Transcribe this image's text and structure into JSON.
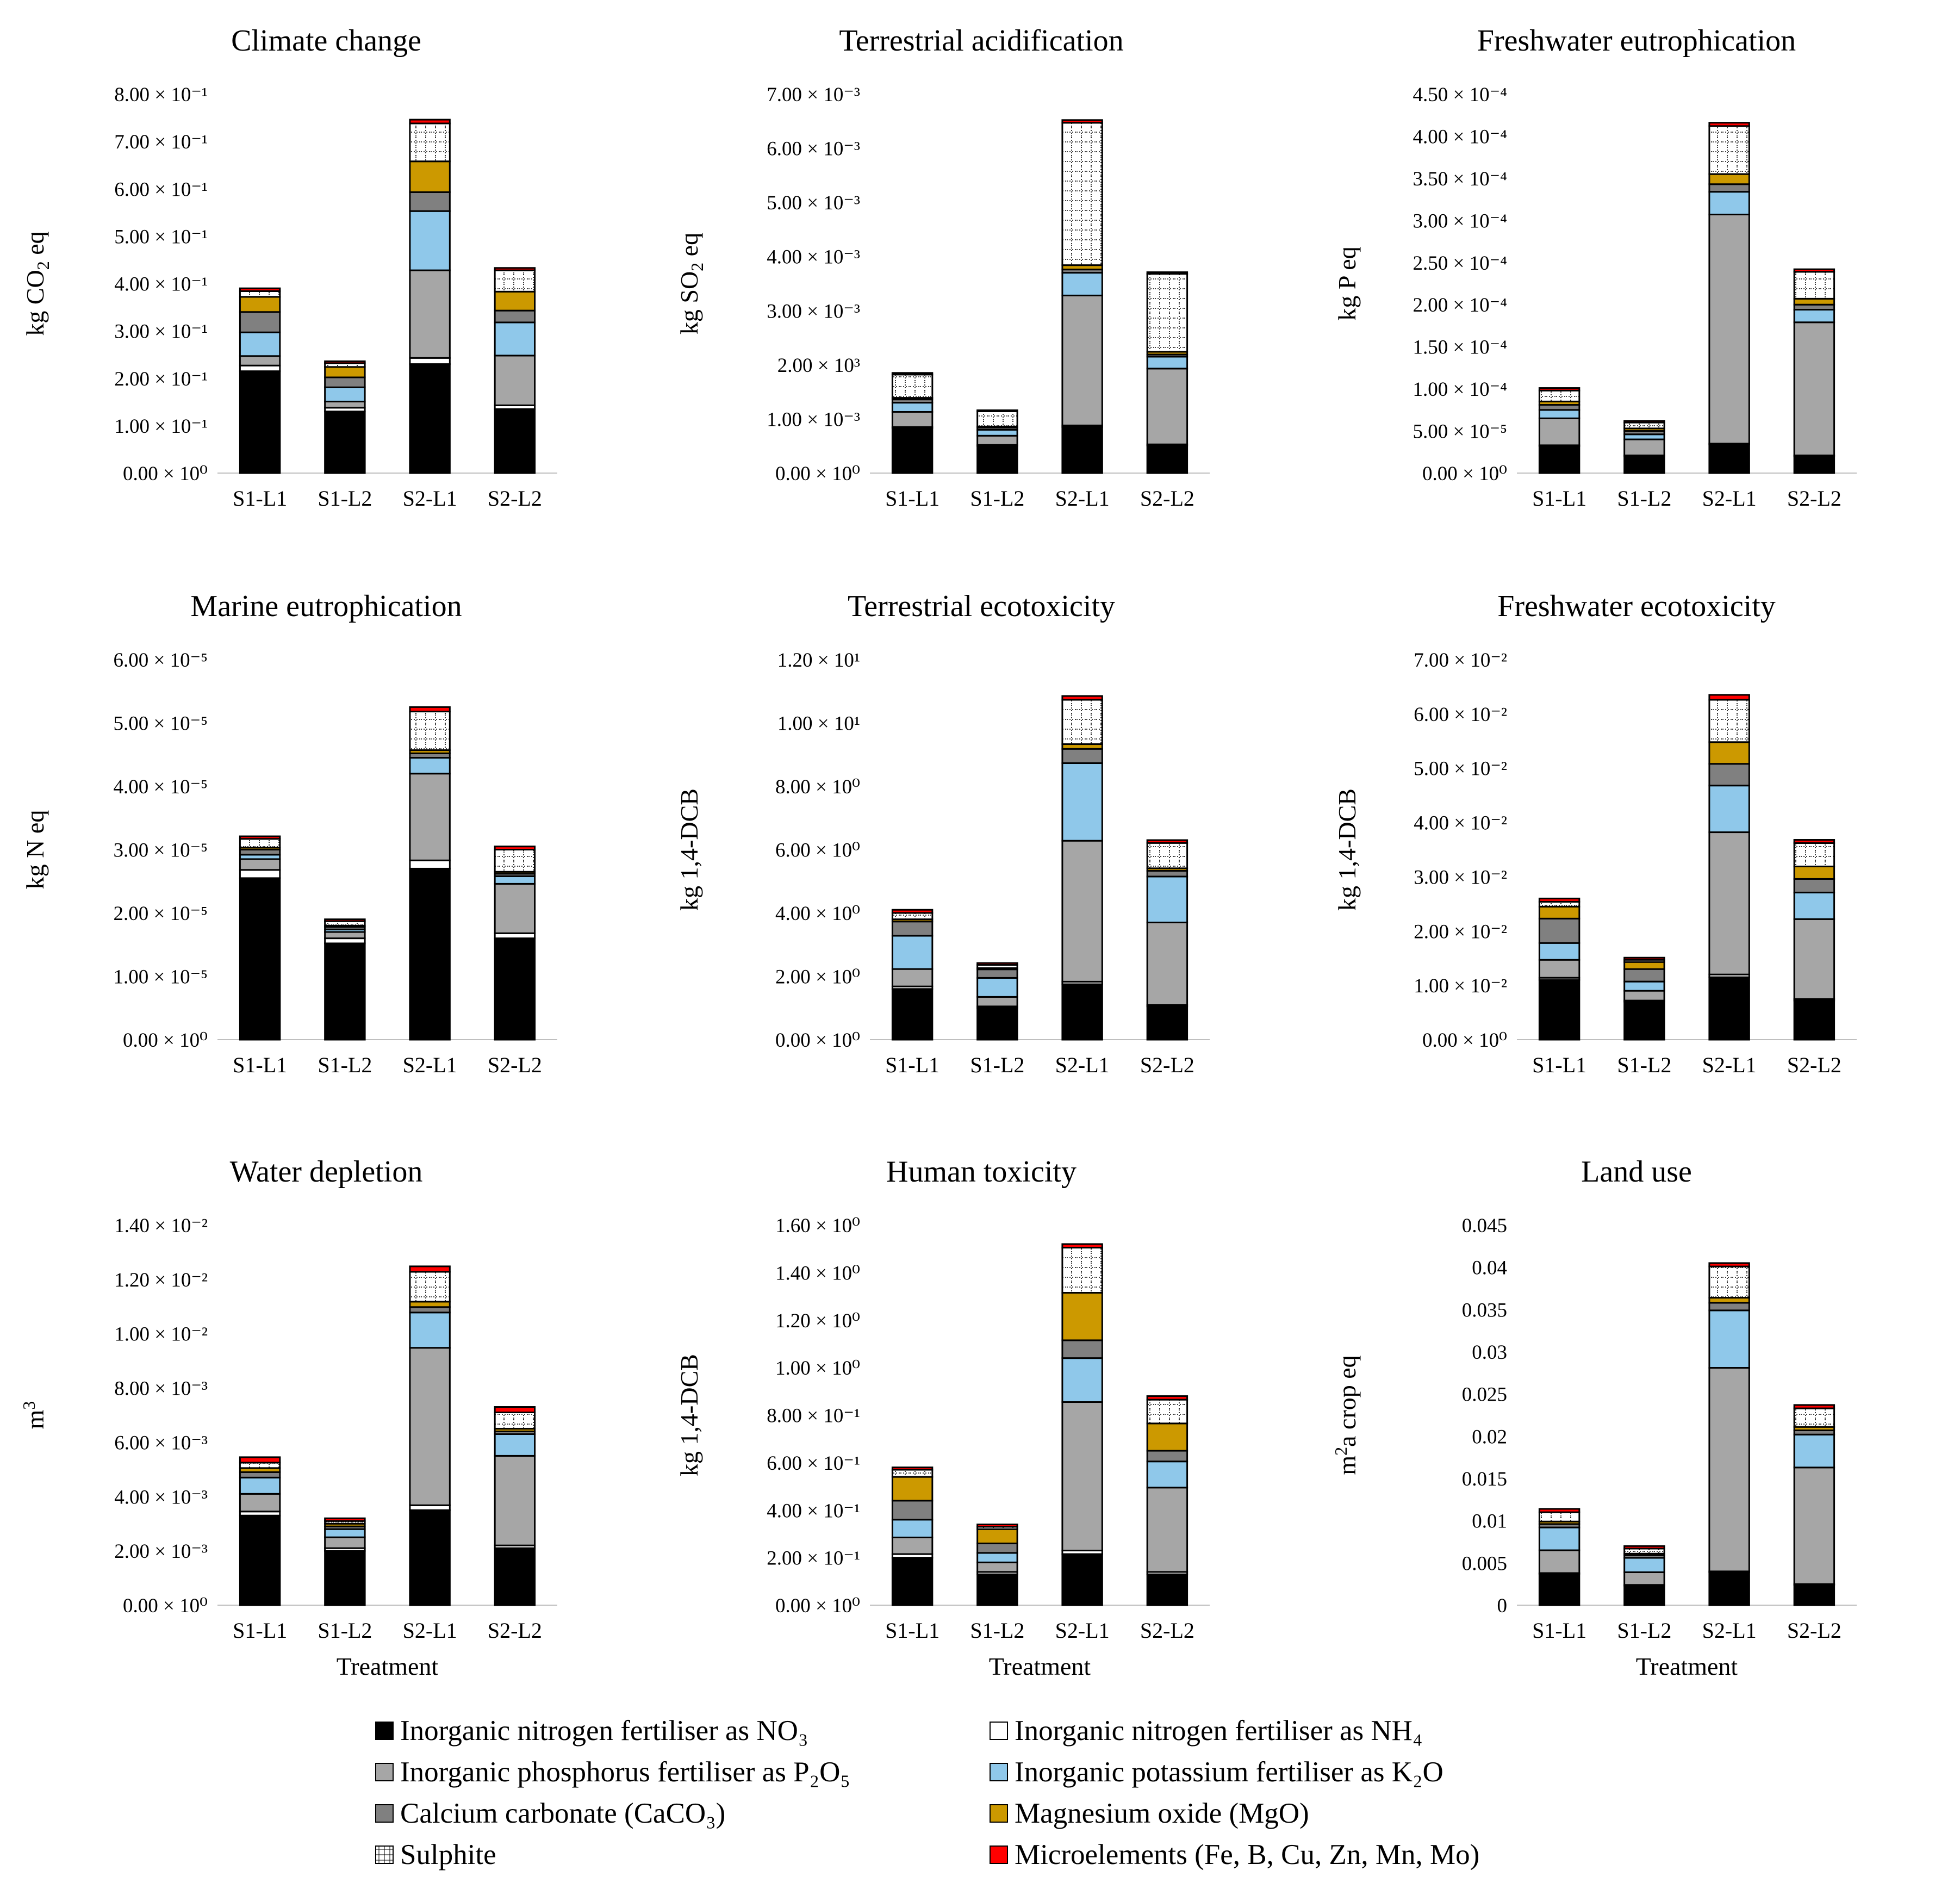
{
  "categories": [
    "S1-L1",
    "S1-L2",
    "S2-L1",
    "S2-L2"
  ],
  "components": [
    {
      "key": "no3",
      "label": "Inorganic nitrogen fertiliser as NO₃",
      "color": "#000000",
      "pattern": "solid"
    },
    {
      "key": "nh4",
      "label": "Inorganic nitrogen fertiliser as NH₄",
      "color": "#ffffff",
      "pattern": "solid"
    },
    {
      "key": "p2o5",
      "label": "Inorganic phosphorus fertiliser as P₂O₅",
      "color": "#a6a6a6",
      "pattern": "solid"
    },
    {
      "key": "k2o",
      "label": "Inorganic potassium fertiliser as K₂O",
      "color": "#8fc8ea",
      "pattern": "solid"
    },
    {
      "key": "caco3",
      "label": "Calcium carbonate (CaCO₃)",
      "color": "#808080",
      "pattern": "solid"
    },
    {
      "key": "mgo",
      "label": "Magnesium oxide (MgO)",
      "color": "#cc9900",
      "pattern": "solid"
    },
    {
      "key": "so3",
      "label": "Sulphite",
      "color": "#ffffff",
      "pattern": "dotted-grid"
    },
    {
      "key": "micro",
      "label": "Microelements (Fe, B, Cu, Zn, Mn, Mo)",
      "color": "#ff0000",
      "pattern": "solid"
    }
  ],
  "legend_order": [
    "no3",
    "nh4",
    "p2o5",
    "k2o",
    "caco3",
    "mgo",
    "so3",
    "micro"
  ],
  "chart_data": [
    {
      "type": "bar",
      "stacked": true,
      "title": "Climate change",
      "ylabel": {
        "base": "kg CO",
        "sub": "2",
        "rest": " eq"
      },
      "xlabel": "",
      "ylim": [
        0,
        0.8
      ],
      "ticks": [
        "0.00 × 10⁰",
        "1.00 × 10⁻¹",
        "2.00 × 10⁻¹",
        "3.00 × 10⁻¹",
        "4.00 × 10⁻¹",
        "5.00 × 10⁻¹",
        "6.00 × 10⁻¹",
        "7.00 × 10⁻¹",
        "8.00 × 10⁻¹"
      ],
      "series": [
        {
          "name": "no3",
          "values": [
            0.215,
            0.13,
            0.23,
            0.135
          ]
        },
        {
          "name": "nh4",
          "values": [
            0.012,
            0.008,
            0.013,
            0.008
          ]
        },
        {
          "name": "p2o5",
          "values": [
            0.02,
            0.013,
            0.185,
            0.105
          ]
        },
        {
          "name": "k2o",
          "values": [
            0.05,
            0.03,
            0.125,
            0.07
          ]
        },
        {
          "name": "caco3",
          "values": [
            0.043,
            0.021,
            0.04,
            0.025
          ]
        },
        {
          "name": "mgo",
          "values": [
            0.032,
            0.022,
            0.065,
            0.04
          ]
        },
        {
          "name": "so3",
          "values": [
            0.012,
            0.008,
            0.08,
            0.045
          ]
        },
        {
          "name": "micro",
          "values": [
            0.006,
            0.004,
            0.008,
            0.005
          ]
        }
      ]
    },
    {
      "type": "bar",
      "stacked": true,
      "title": "Terrestrial acidification",
      "ylabel": {
        "base": "kg SO",
        "sub": "2",
        "rest": " eq"
      },
      "xlabel": "",
      "ylim": [
        0,
        0.007
      ],
      "ticks": [
        "0.00 × 10⁰",
        "1.00 × 10⁻³",
        "2.00  × 10³",
        "3.00 × 10⁻³",
        "4.00 × 10⁻³",
        "5.00 × 10⁻³",
        "6.00 × 10⁻³",
        "7.00 × 10⁻³"
      ],
      "series": [
        {
          "name": "no3",
          "values": [
            0.00083,
            0.0005,
            0.00085,
            0.00051
          ]
        },
        {
          "name": "nh4",
          "values": [
            2e-05,
            2e-05,
            3e-05,
            2e-05
          ]
        },
        {
          "name": "p2o5",
          "values": [
            0.00028,
            0.00017,
            0.0024,
            0.0014
          ]
        },
        {
          "name": "k2o",
          "values": [
            0.00017,
            0.00011,
            0.00042,
            0.00022
          ]
        },
        {
          "name": "caco3",
          "values": [
            6e-05,
            4e-05,
            6e-05,
            4e-05
          ]
        },
        {
          "name": "mgo",
          "values": [
            3e-05,
            2e-05,
            8e-05,
            5e-05
          ]
        },
        {
          "name": "so3",
          "values": [
            0.00043,
            0.00028,
            0.00263,
            0.00144
          ]
        },
        {
          "name": "micro",
          "values": [
            3e-05,
            2e-05,
            5e-05,
            3e-05
          ]
        }
      ]
    },
    {
      "type": "bar",
      "stacked": true,
      "title": "Freshwater eutrophication",
      "ylabel": {
        "base": "kg P eq",
        "sub": "",
        "rest": ""
      },
      "xlabel": "",
      "ylim": [
        0,
        0.00045
      ],
      "ticks": [
        "0.00 × 10⁰",
        "5.00 × 10⁻⁵",
        "1.00 × 10⁻⁴",
        "1.50 × 10⁻⁴",
        "2.00 × 10⁻⁴",
        "2.50 × 10⁻⁴",
        "3.00 × 10⁻⁴",
        "3.50 × 10⁻⁴",
        "4.00 × 10⁻⁴",
        "4.50 × 10⁻⁴"
      ],
      "series": [
        {
          "name": "no3",
          "values": [
            3.2e-05,
            2e-05,
            3.4e-05,
            2e-05
          ]
        },
        {
          "name": "nh4",
          "values": [
            1e-06,
            1e-06,
            1e-06,
            1e-06
          ]
        },
        {
          "name": "p2o5",
          "values": [
            3.2e-05,
            1.9e-05,
            0.000272,
            0.000158
          ]
        },
        {
          "name": "k2o",
          "values": [
            1e-05,
            6e-06,
            2.7e-05,
            1.5e-05
          ]
        },
        {
          "name": "caco3",
          "values": [
            6e-06,
            4e-06,
            9e-06,
            6e-06
          ]
        },
        {
          "name": "mgo",
          "values": [
            4e-06,
            3e-06,
            1.2e-05,
            7e-06
          ]
        },
        {
          "name": "so3",
          "values": [
            1.3e-05,
            7e-06,
            5.7e-05,
            3.2e-05
          ]
        },
        {
          "name": "micro",
          "values": [
            3e-06,
            2e-06,
            4e-06,
            3e-06
          ]
        }
      ]
    },
    {
      "type": "bar",
      "stacked": true,
      "title": "Marine eutrophication",
      "ylabel": {
        "base": "kg N eq",
        "sub": "",
        "rest": ""
      },
      "xlabel": "",
      "ylim": [
        0,
        6e-05
      ],
      "ticks": [
        "0.00 × 10⁰",
        "1.00 × 10⁻⁵",
        "2.00 × 10⁻⁵",
        "3.00 × 10⁻⁵",
        "4.00 × 10⁻⁵",
        "5.00 × 10⁻⁵",
        "6.00 × 10⁻⁵"
      ],
      "series": [
        {
          "name": "no3",
          "values": [
            2.55e-05,
            1.52e-05,
            2.7e-05,
            1.6e-05
          ]
        },
        {
          "name": "nh4",
          "values": [
            1.3e-06,
            8e-07,
            1.3e-06,
            8e-07
          ]
        },
        {
          "name": "p2o5",
          "values": [
            1.7e-06,
            1e-06,
            1.37e-05,
            7.8e-06
          ]
        },
        {
          "name": "k2o",
          "values": [
            7e-07,
            4e-07,
            2.5e-06,
            1.2e-06
          ]
        },
        {
          "name": "caco3",
          "values": [
            8e-07,
            4e-07,
            7e-07,
            4e-07
          ]
        },
        {
          "name": "mgo",
          "values": [
            3e-07,
            2e-07,
            5e-07,
            3e-07
          ]
        },
        {
          "name": "so3",
          "values": [
            1.4e-06,
            7e-07,
            6.1e-06,
            3.5e-06
          ]
        },
        {
          "name": "micro",
          "values": [
            4e-07,
            3e-07,
            7e-07,
            5e-07
          ]
        }
      ]
    },
    {
      "type": "bar",
      "stacked": true,
      "title": "Terrestrial ecotoxicity",
      "ylabel": {
        "base": "kg 1,4-DCB",
        "sub": "",
        "rest": ""
      },
      "xlabel": "",
      "ylim": [
        0,
        12
      ],
      "ticks": [
        "0.00 × 10⁰",
        "2.00 × 10⁰",
        "4.00 × 10⁰",
        "6.00 × 10⁰",
        "8.00 × 10⁰",
        "1.00 × 10¹",
        "1.20 × 10¹"
      ],
      "series": [
        {
          "name": "no3",
          "values": [
            1.6,
            1.0,
            1.75,
            1.05
          ]
        },
        {
          "name": "nh4",
          "values": [
            0.08,
            0.05,
            0.08,
            0.05
          ]
        },
        {
          "name": "p2o5",
          "values": [
            0.55,
            0.3,
            4.45,
            2.6
          ]
        },
        {
          "name": "k2o",
          "values": [
            1.05,
            0.6,
            2.45,
            1.45
          ]
        },
        {
          "name": "caco3",
          "values": [
            0.45,
            0.27,
            0.45,
            0.18
          ]
        },
        {
          "name": "mgo",
          "values": [
            0.07,
            0.04,
            0.15,
            0.08
          ]
        },
        {
          "name": "so3",
          "values": [
            0.2,
            0.1,
            1.4,
            0.8
          ]
        },
        {
          "name": "micro",
          "values": [
            0.1,
            0.06,
            0.12,
            0.09
          ]
        }
      ]
    },
    {
      "type": "bar",
      "stacked": true,
      "title": "Freshwater ecotoxicity",
      "ylabel": {
        "base": "kg 1,4-DCB",
        "sub": "",
        "rest": ""
      },
      "xlabel": "",
      "ylim": [
        0,
        0.07
      ],
      "ticks": [
        "0.00 × 10⁰",
        "1.00 × 10⁻²",
        "2.00 × 10⁻²",
        "3.00 × 10⁻²",
        "4.00 × 10⁻²",
        "5.00 × 10⁻²",
        "6.00 × 10⁻²",
        "7.00 × 10⁻²"
      ],
      "series": [
        {
          "name": "no3",
          "values": [
            0.011,
            0.007,
            0.0115,
            0.0072
          ]
        },
        {
          "name": "nh4",
          "values": [
            0.0004,
            0.0002,
            0.0005,
            0.0003
          ]
        },
        {
          "name": "p2o5",
          "values": [
            0.0033,
            0.0018,
            0.0262,
            0.0147
          ]
        },
        {
          "name": "k2o",
          "values": [
            0.0031,
            0.0017,
            0.0086,
            0.0049
          ]
        },
        {
          "name": "caco3",
          "values": [
            0.0045,
            0.0023,
            0.004,
            0.0025
          ]
        },
        {
          "name": "mgo",
          "values": [
            0.0022,
            0.0013,
            0.004,
            0.0023
          ]
        },
        {
          "name": "so3",
          "values": [
            0.0009,
            0.0004,
            0.0078,
            0.0043
          ]
        },
        {
          "name": "micro",
          "values": [
            0.0006,
            0.0004,
            0.0009,
            0.0006
          ]
        }
      ]
    },
    {
      "type": "bar",
      "stacked": true,
      "title": "Water depletion",
      "ylabel": {
        "base": "m",
        "sub": "",
        "sup": "3",
        "rest": ""
      },
      "xlabel": "Treatment",
      "ylim": [
        0,
        0.014
      ],
      "ticks": [
        "0.00 × 10⁰",
        "2.00 × 10⁻³",
        "4.00 × 10⁻³",
        "6.00 × 10⁻³",
        "8.00 × 10⁻³",
        "1.00 × 10⁻²",
        "1.20 × 10⁻²",
        "1.40 × 10⁻²"
      ],
      "series": [
        {
          "name": "no3",
          "values": [
            0.0033,
            0.002,
            0.0035,
            0.0021
          ]
        },
        {
          "name": "nh4",
          "values": [
            0.00015,
            0.0001,
            0.00018,
            0.0001
          ]
        },
        {
          "name": "p2o5",
          "values": [
            0.00065,
            0.0004,
            0.0058,
            0.0033
          ]
        },
        {
          "name": "k2o",
          "values": [
            0.0006,
            0.0003,
            0.0013,
            0.0008
          ]
        },
        {
          "name": "caco3",
          "values": [
            0.0002,
            0.0001,
            0.0002,
            0.0001
          ]
        },
        {
          "name": "mgo",
          "values": [
            0.00015,
            0.0001,
            0.0002,
            0.0001
          ]
        },
        {
          "name": "so3",
          "values": [
            0.0002,
            0.0001,
            0.0011,
            0.0006
          ]
        },
        {
          "name": "micro",
          "values": [
            0.0002,
            0.0001,
            0.0002,
            0.0002
          ]
        }
      ]
    },
    {
      "type": "bar",
      "stacked": true,
      "title": "Human toxicity",
      "ylabel": {
        "base": "kg 1,4-DCB",
        "sub": "",
        "rest": ""
      },
      "xlabel": "Treatment",
      "ylim": [
        0,
        1.6
      ],
      "ticks": [
        "0.00 × 10⁰",
        "2.00 × 10⁻¹",
        "4.00 × 10⁻¹",
        "6.00 × 10⁻¹",
        "8.00 × 10⁻¹",
        "1.00 × 10⁰",
        "1.20 × 10⁰",
        "1.40 × 10⁰",
        "1.60 × 10⁰"
      ],
      "series": [
        {
          "name": "no3",
          "values": [
            0.2,
            0.13,
            0.215,
            0.13
          ]
        },
        {
          "name": "nh4",
          "values": [
            0.015,
            0.01,
            0.015,
            0.01
          ]
        },
        {
          "name": "p2o5",
          "values": [
            0.07,
            0.04,
            0.625,
            0.355
          ]
        },
        {
          "name": "k2o",
          "values": [
            0.075,
            0.04,
            0.185,
            0.11
          ]
        },
        {
          "name": "caco3",
          "values": [
            0.08,
            0.04,
            0.075,
            0.045
          ]
        },
        {
          "name": "mgo",
          "values": [
            0.1,
            0.06,
            0.2,
            0.115
          ]
        },
        {
          "name": "so3",
          "values": [
            0.03,
            0.01,
            0.19,
            0.1
          ]
        },
        {
          "name": "micro",
          "values": [
            0.01,
            0.01,
            0.015,
            0.015
          ]
        }
      ]
    },
    {
      "type": "bar",
      "stacked": true,
      "title": "Land use",
      "ylabel": {
        "base": "m",
        "sup": "2",
        "rest": "a crop eq"
      },
      "xlabel": "Treatment",
      "ylim": [
        0,
        0.045
      ],
      "ticks": [
        "0",
        "0.005",
        "0.01",
        "0.015",
        "0.02",
        "0.025",
        "0.03",
        "0.035",
        "0.04",
        "0.045"
      ],
      "series": [
        {
          "name": "no3",
          "values": [
            0.0037,
            0.0023,
            0.0039,
            0.0024
          ]
        },
        {
          "name": "nh4",
          "values": [
            0.0001,
            0.0001,
            0.0001,
            0.0001
          ]
        },
        {
          "name": "p2o5",
          "values": [
            0.0027,
            0.0015,
            0.0241,
            0.0138
          ]
        },
        {
          "name": "k2o",
          "values": [
            0.0027,
            0.0017,
            0.0068,
            0.0039
          ]
        },
        {
          "name": "caco3",
          "values": [
            0.0004,
            0.0003,
            0.0009,
            0.0005
          ]
        },
        {
          "name": "mgo",
          "values": [
            0.0003,
            0.0002,
            0.0006,
            0.0004
          ]
        },
        {
          "name": "so3",
          "values": [
            0.0011,
            0.0006,
            0.0037,
            0.0022
          ]
        },
        {
          "name": "micro",
          "values": [
            0.0004,
            0.0003,
            0.0004,
            0.0004
          ]
        }
      ]
    }
  ]
}
